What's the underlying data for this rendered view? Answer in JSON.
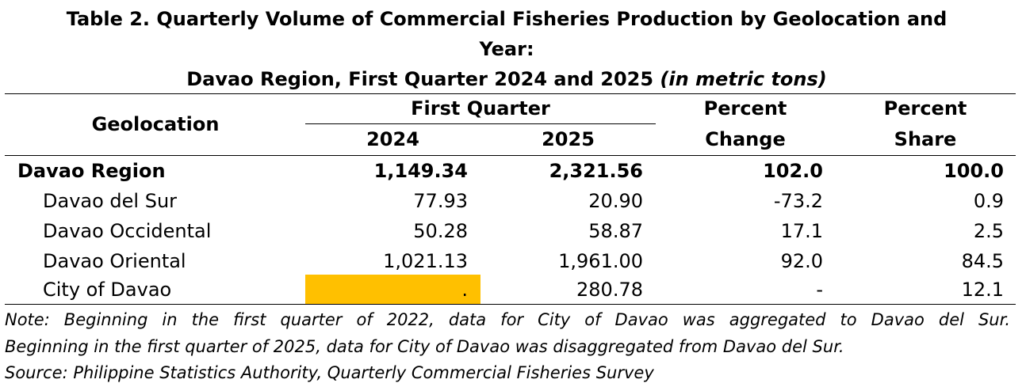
{
  "title": {
    "line1": "Table 2. Quarterly Volume of Commercial Fisheries Production by Geolocation and",
    "line2": "Year:",
    "line3_main": "Davao Region, First Quarter 2024 and 2025 ",
    "line3_unit": "(in metric tons)"
  },
  "header": {
    "geolocation": "Geolocation",
    "first_quarter": "First Quarter",
    "year1": "2024",
    "year2": "2025",
    "pct_change_1": "Percent",
    "pct_change_2": "Change",
    "pct_share_1": "Percent",
    "pct_share_2": "Share"
  },
  "rows": [
    {
      "geo": "Davao Region",
      "y2024": "1,149.34",
      "y2025": "2,321.56",
      "change": "102.0",
      "share": "100.0"
    },
    {
      "geo": "Davao del Sur",
      "y2024": "77.93",
      "y2025": "20.90",
      "change": "-73.2",
      "share": "0.9"
    },
    {
      "geo": "Davao Occidental",
      "y2024": "50.28",
      "y2025": "58.87",
      "change": "17.1",
      "share": "2.5"
    },
    {
      "geo": "Davao Oriental",
      "y2024": "1,021.13",
      "y2025": "1,961.00",
      "change": "92.0",
      "share": "84.5"
    },
    {
      "geo": "City of Davao",
      "y2024": ".",
      "y2025": "280.78",
      "change": "-",
      "share": "12.1"
    }
  ],
  "colors": {
    "highlight": "#FFC000"
  },
  "notes": {
    "line1": "Note: Beginning in the first quarter of 2022, data for City of Davao was aggregated to Davao del Sur.",
    "line2": "Beginning in the first quarter of 2025, data for City of Davao was disaggregated from Davao del Sur.",
    "source": "Source: Philippine Statistics Authority, Quarterly Commercial Fisheries Survey"
  }
}
